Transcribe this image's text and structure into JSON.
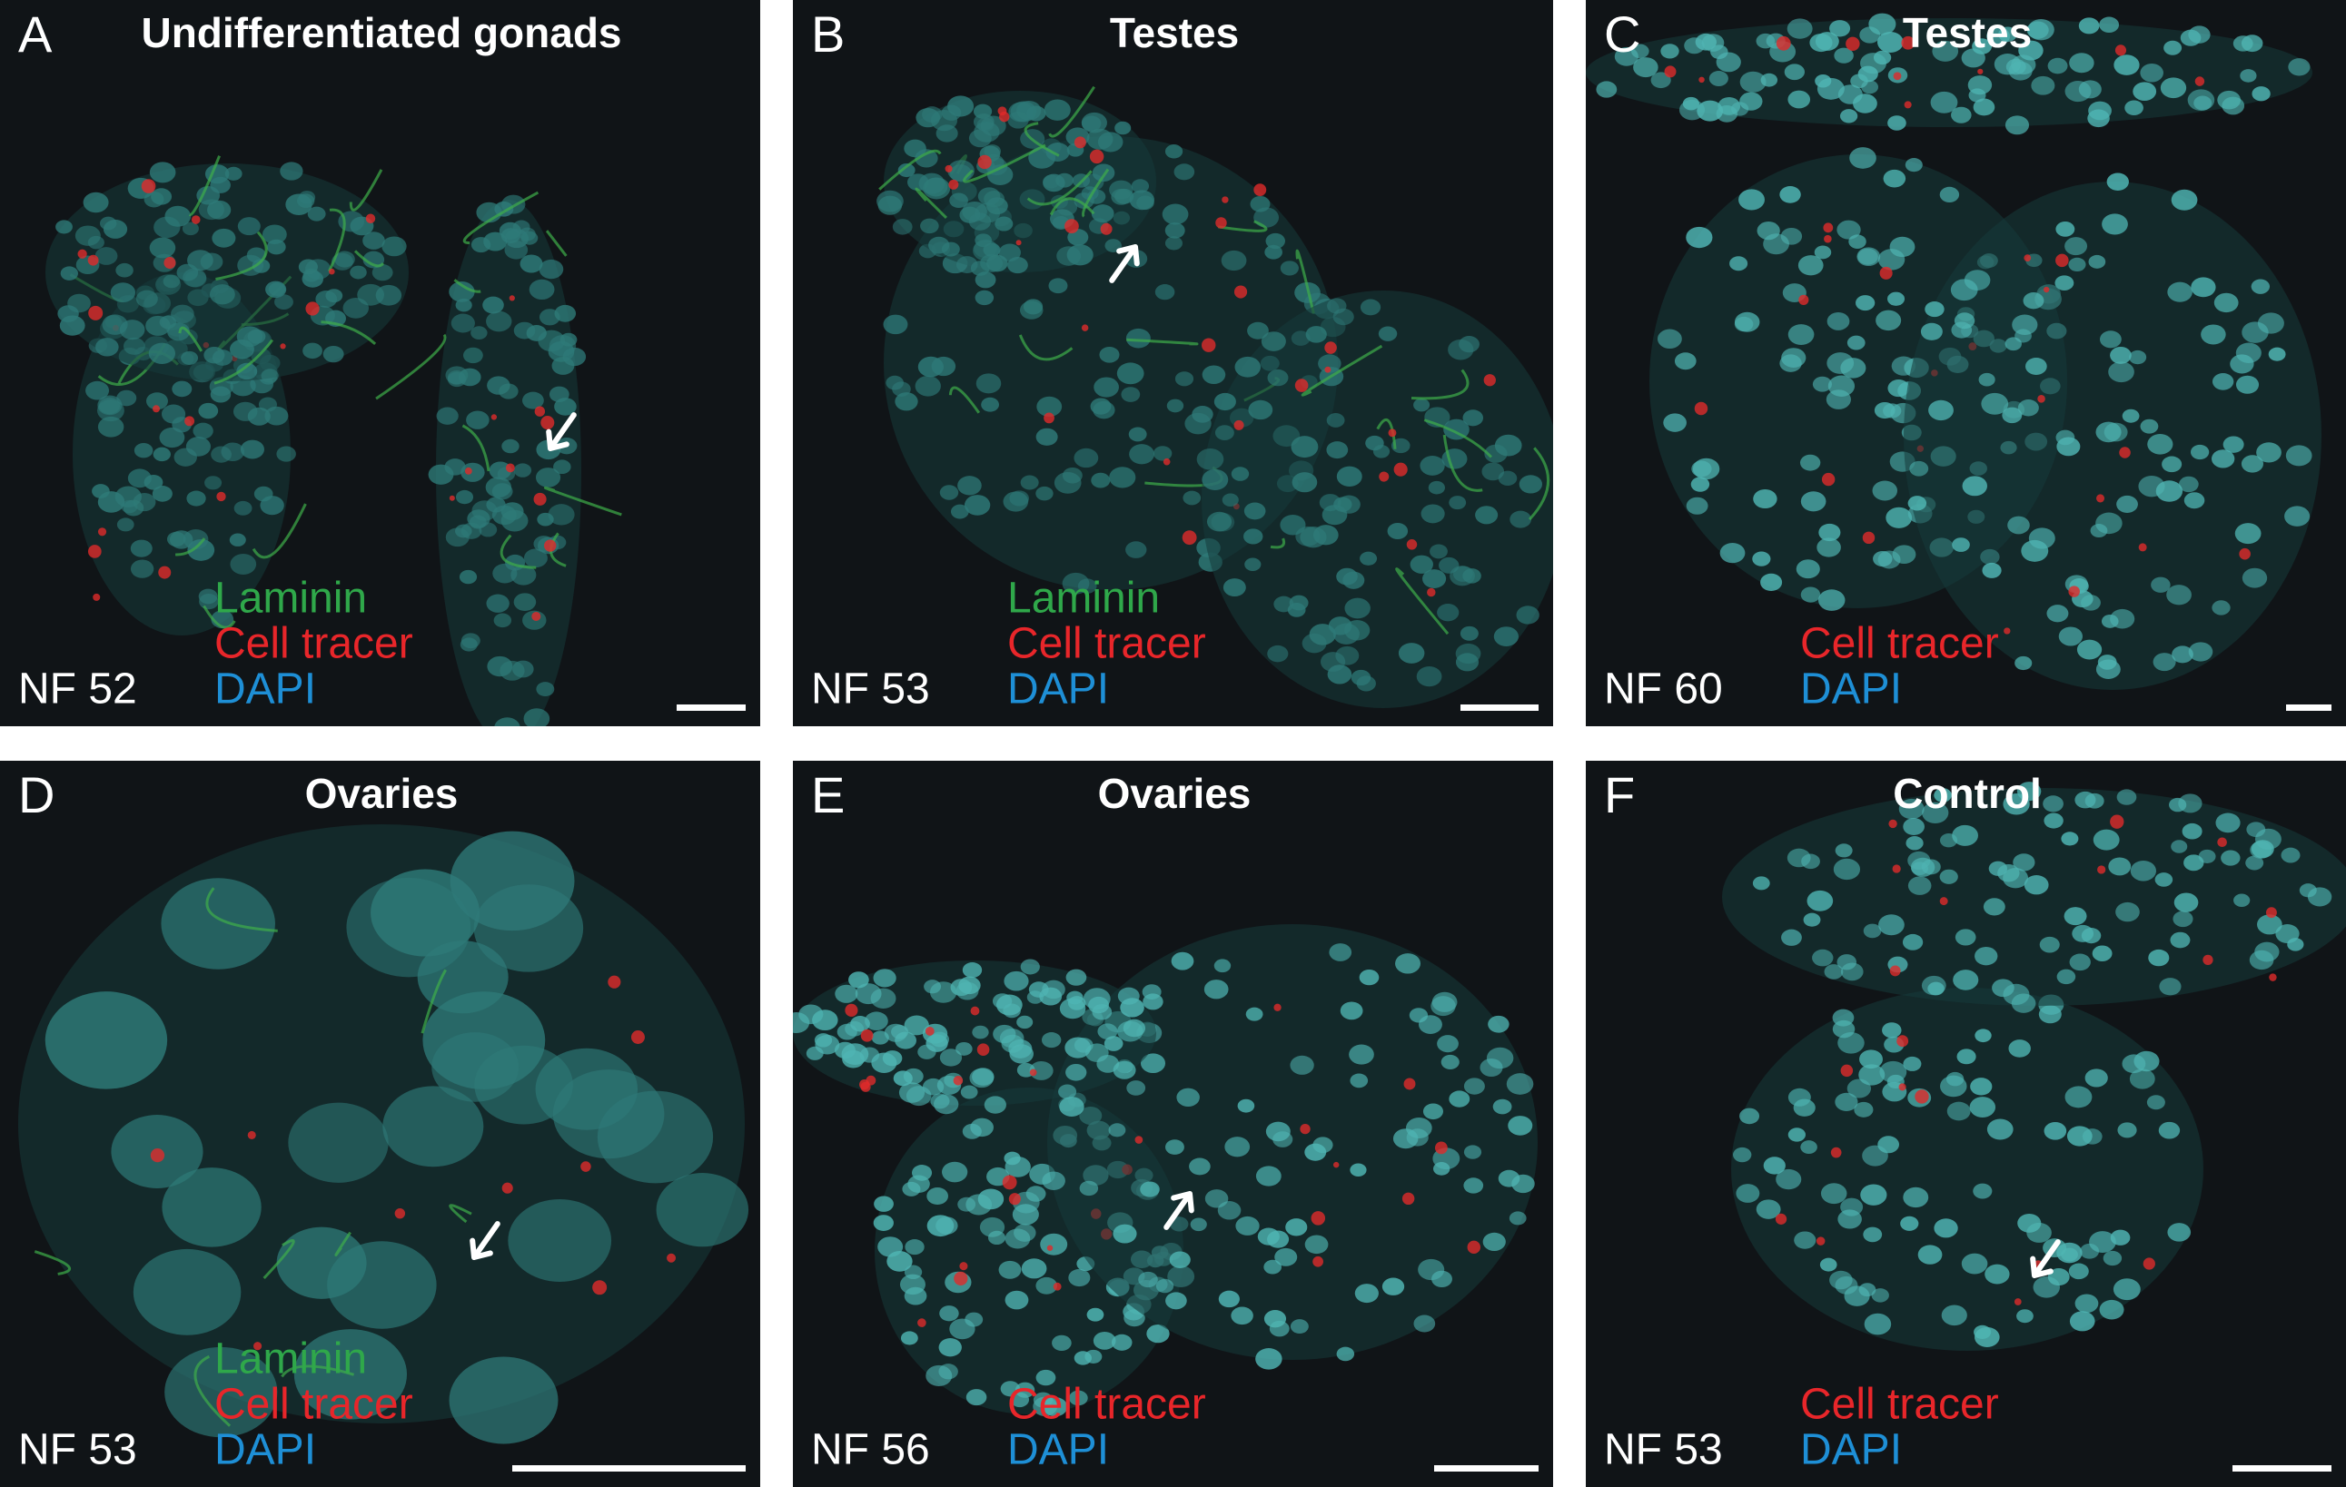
{
  "panels": [
    {
      "letter": "A",
      "title": "Undifferentiated gonads",
      "stage": "NF 52",
      "stains": [
        {
          "name": "Laminin",
          "color": "#2fa84a"
        },
        {
          "name": "Cell tracer",
          "color": "#e8262a"
        },
        {
          "name": "DAPI",
          "color": "#1e8fd6"
        }
      ]
    },
    {
      "letter": "B",
      "title": "Testes",
      "stage": "NF 53",
      "stains": [
        {
          "name": "Laminin",
          "color": "#2fa84a"
        },
        {
          "name": "Cell tracer",
          "color": "#e8262a"
        },
        {
          "name": "DAPI",
          "color": "#1e8fd6"
        }
      ]
    },
    {
      "letter": "C",
      "title": "Testes",
      "stage": "NF 60",
      "stains": [
        {
          "name": "Cell tracer",
          "color": "#e8262a"
        },
        {
          "name": "DAPI",
          "color": "#1e8fd6"
        }
      ]
    },
    {
      "letter": "D",
      "title": "Ovaries",
      "stage": "NF 53",
      "stains": [
        {
          "name": "Laminin",
          "color": "#2fa84a"
        },
        {
          "name": "Cell tracer",
          "color": "#e8262a"
        },
        {
          "name": "DAPI",
          "color": "#1e8fd6"
        }
      ]
    },
    {
      "letter": "E",
      "title": "Ovaries",
      "stage": "NF 56",
      "stains": [
        {
          "name": "Cell tracer",
          "color": "#e8262a"
        },
        {
          "name": "DAPI",
          "color": "#1e8fd6"
        }
      ]
    },
    {
      "letter": "F",
      "title": "Control",
      "stage": "NF 53",
      "stains": [
        {
          "name": "Cell tracer",
          "color": "#e8262a"
        },
        {
          "name": "DAPI",
          "color": "#1e8fd6"
        }
      ]
    }
  ]
}
